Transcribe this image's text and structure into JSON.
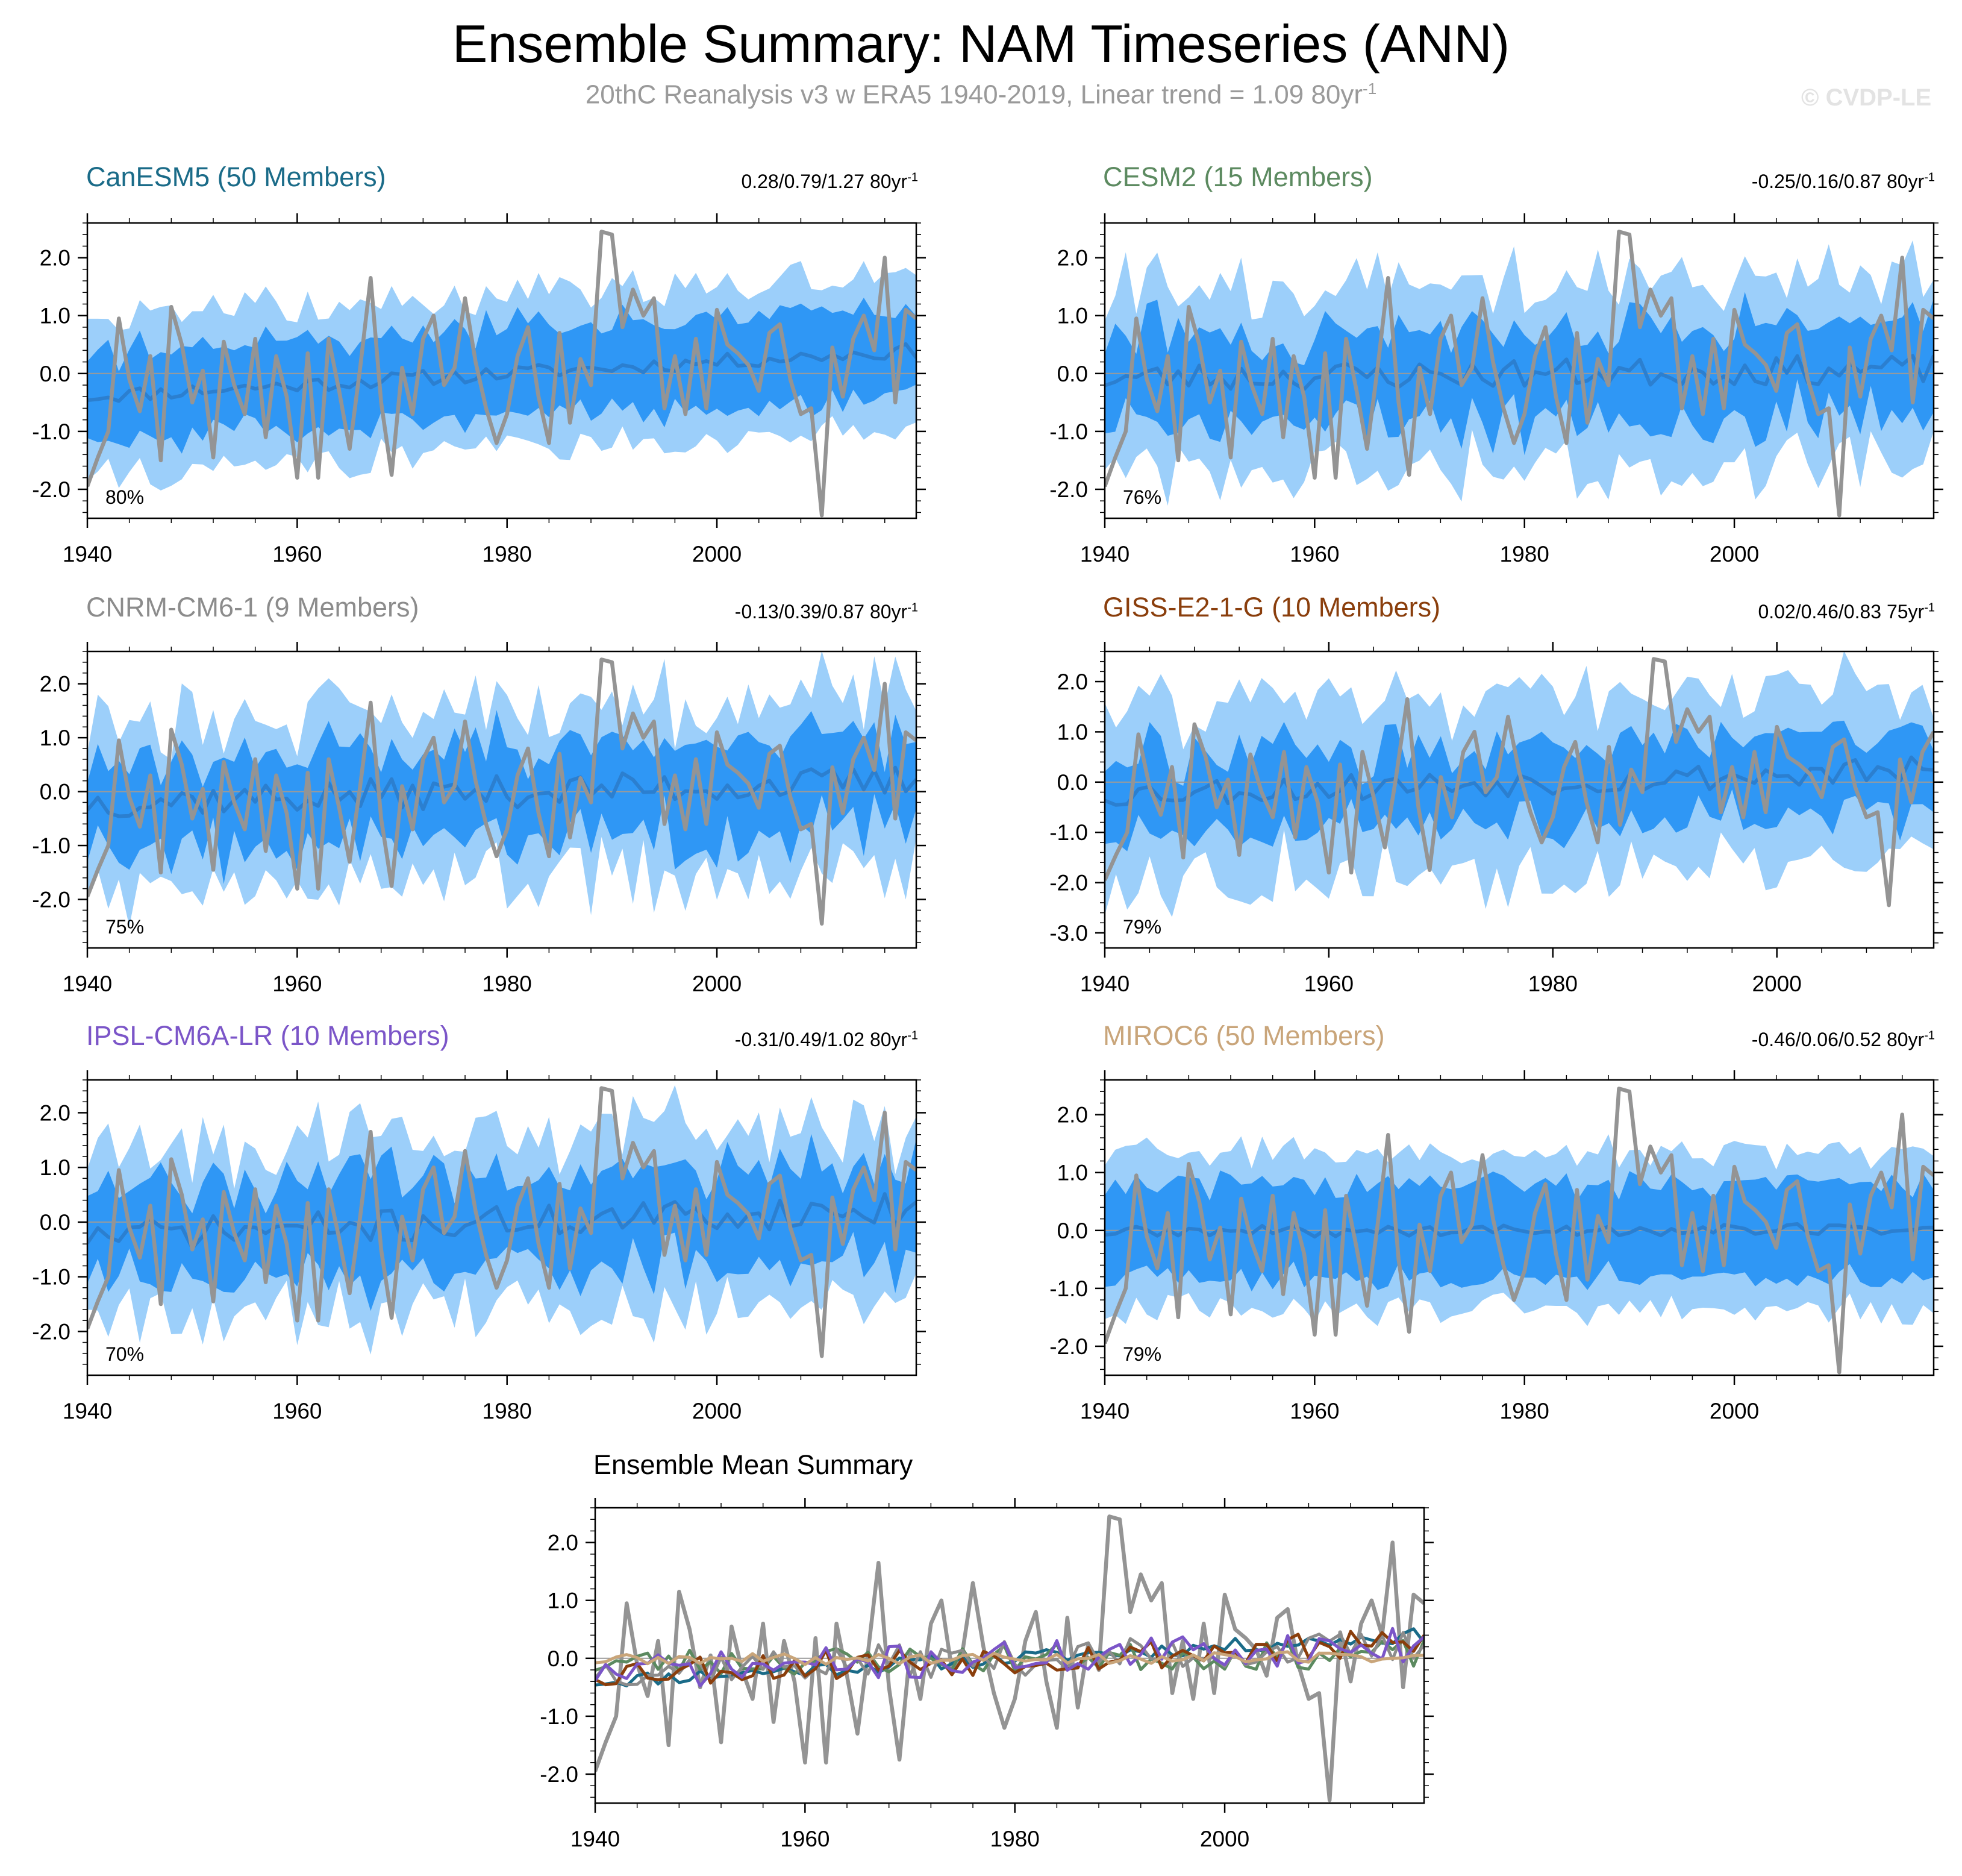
{
  "title": "Ensemble Summary: NAM Timeseries (ANN)",
  "subtitle": {
    "prefix": "20thC Reanalysis v3 w ERA5 1940-2019, Linear trend = 1.09 80yr",
    "superscript": "-1"
  },
  "watermark": "© CVDP-LE",
  "colors": {
    "inner_band": "#2f97f5",
    "outer_band": "#9ccffa",
    "ensemble_mean": "#2b7fd0",
    "observations": "#949494",
    "zero_line": "#9a9a9a"
  },
  "chart_data": [
    {
      "type": "area",
      "title": "CanESM5 (50 Members)",
      "title_color": "#1a6b88",
      "trend_text": "0.28/0.79/1.27 80yr",
      "trend_superscript": "-1",
      "percent_label": "80%",
      "x_range": [
        1940,
        2019
      ],
      "ylim": [
        -2.5,
        2.6
      ],
      "yticks": [
        -2.0,
        -1.0,
        0.0,
        1.0,
        2.0
      ],
      "ytick_labels": [
        "-2.0",
        "-1.0",
        "0.0",
        "1.0",
        "2.0"
      ],
      "xtick_labels": [
        "1940",
        "1960",
        "1980",
        "2000"
      ],
      "bands": {
        "mean_offset": 0.0,
        "mean_trend": 0.79,
        "mean_noise": 0.13,
        "inner_half_width": 0.75,
        "outer_half_width": 1.35,
        "band_noise": 0.18,
        "seed": 11
      }
    },
    {
      "type": "area",
      "title": "CESM2 (15 Members)",
      "title_color": "#5c8a60",
      "trend_text": "-0.25/0.16/0.87 80yr",
      "trend_superscript": "-1",
      "percent_label": "76%",
      "x_range": [
        1940,
        2019
      ],
      "ylim": [
        -2.5,
        2.6
      ],
      "yticks": [
        -2.0,
        -1.0,
        0.0,
        1.0,
        2.0
      ],
      "ytick_labels": [
        "-2.0",
        "-1.0",
        "0.0",
        "1.0",
        "2.0"
      ],
      "xtick_labels": [
        "1940",
        "1960",
        "1980",
        "2000"
      ],
      "bands": {
        "mean_offset": 0.0,
        "mean_trend": 0.16,
        "mean_noise": 0.25,
        "inner_half_width": 0.8,
        "outer_half_width": 1.6,
        "band_noise": 0.25,
        "seed": 23
      }
    },
    {
      "type": "area",
      "title": "CNRM-CM6-1 (9 Members)",
      "title_color": "#8c8c8c",
      "trend_text": "-0.13/0.39/0.87 80yr",
      "trend_superscript": "-1",
      "percent_label": "75%",
      "x_range": [
        1940,
        2019
      ],
      "ylim": [
        -2.9,
        2.6
      ],
      "yticks": [
        -2.0,
        -1.0,
        0.0,
        1.0,
        2.0
      ],
      "ytick_labels": [
        "-2.0",
        "-1.0",
        "0.0",
        "1.0",
        "2.0"
      ],
      "xtick_labels": [
        "1940",
        "1960",
        "1980",
        "2000"
      ],
      "bands": {
        "mean_offset": 0.0,
        "mean_trend": 0.39,
        "mean_noise": 0.3,
        "inner_half_width": 0.85,
        "outer_half_width": 1.6,
        "band_noise": 0.3,
        "seed": 37
      }
    },
    {
      "type": "area",
      "title": "GISS-E2-1-G (10 Members)",
      "title_color": "#8a3e0c",
      "trend_text": "0.02/0.46/0.83 75yr",
      "trend_superscript": "-1",
      "percent_label": "79%",
      "x_range": [
        1940,
        2014
      ],
      "ylim": [
        -3.3,
        2.6
      ],
      "yticks": [
        -3.0,
        -2.0,
        -1.0,
        0.0,
        1.0,
        2.0
      ],
      "ytick_labels": [
        "-3.0",
        "-2.0",
        "-1.0",
        "0.0",
        "1.0",
        "2.0"
      ],
      "xtick_labels": [
        "1940",
        "1960",
        "1980",
        "2000"
      ],
      "bands": {
        "mean_offset": 0.0,
        "mean_trend": 0.46,
        "mean_noise": 0.28,
        "inner_half_width": 0.8,
        "outer_half_width": 1.7,
        "band_noise": 0.3,
        "seed": 53
      }
    },
    {
      "type": "area",
      "title": "IPSL-CM6A-LR (10 Members)",
      "title_color": "#7b55c8",
      "trend_text": "-0.31/0.49/1.02 80yr",
      "trend_superscript": "-1",
      "percent_label": "70%",
      "x_range": [
        1940,
        2019
      ],
      "ylim": [
        -2.8,
        2.6
      ],
      "yticks": [
        -2.0,
        -1.0,
        0.0,
        1.0,
        2.0
      ],
      "ytick_labels": [
        "-2.0",
        "-1.0",
        "0.0",
        "1.0",
        "2.0"
      ],
      "xtick_labels": [
        "1940",
        "1960",
        "1980",
        "2000"
      ],
      "bands": {
        "mean_offset": 0.0,
        "mean_trend": 0.49,
        "mean_noise": 0.3,
        "inner_half_width": 0.85,
        "outer_half_width": 1.6,
        "band_noise": 0.3,
        "seed": 71
      }
    },
    {
      "type": "area",
      "title": "MIROC6 (50 Members)",
      "title_color": "#c9a57a",
      "trend_text": "-0.46/0.06/0.52 80yr",
      "trend_superscript": "-1",
      "percent_label": "79%",
      "x_range": [
        1940,
        2019
      ],
      "ylim": [
        -2.5,
        2.6
      ],
      "yticks": [
        -2.0,
        -1.0,
        0.0,
        1.0,
        2.0
      ],
      "ytick_labels": [
        "-2.0",
        "-1.0",
        "0.0",
        "1.0",
        "2.0"
      ],
      "xtick_labels": [
        "1940",
        "1960",
        "1980",
        "2000"
      ],
      "bands": {
        "mean_offset": 0.0,
        "mean_trend": 0.06,
        "mean_noise": 0.1,
        "inner_half_width": 0.8,
        "outer_half_width": 1.35,
        "band_noise": 0.15,
        "seed": 89
      }
    },
    {
      "type": "line",
      "title": "Ensemble Mean Summary",
      "title_color": "#000000",
      "x_range": [
        1940,
        2019
      ],
      "ylim": [
        -2.5,
        2.6
      ],
      "yticks": [
        -2.0,
        -1.0,
        0.0,
        1.0,
        2.0
      ],
      "ytick_labels": [
        "-2.0",
        "-1.0",
        "0.0",
        "1.0",
        "2.0"
      ],
      "xtick_labels": [
        "1940",
        "1960",
        "1980",
        "2000"
      ],
      "series": [
        {
          "name": "CanESM5",
          "color": "#1a6b88",
          "trend": 0.79,
          "noise": 0.13,
          "seed": 11
        },
        {
          "name": "CESM2",
          "color": "#5c8a60",
          "trend": 0.16,
          "noise": 0.25,
          "seed": 23
        },
        {
          "name": "CNRM-CM6-1",
          "color": "#8c8c8c",
          "trend": 0.39,
          "noise": 0.3,
          "seed": 37
        },
        {
          "name": "GISS-E2-1-G",
          "color": "#8a3e0c",
          "trend": 0.46,
          "noise": 0.28,
          "seed": 53
        },
        {
          "name": "IPSL-CM6A-LR",
          "color": "#7b55c8",
          "trend": 0.49,
          "noise": 0.3,
          "seed": 71
        },
        {
          "name": "MIROC6",
          "color": "#c9a57a",
          "trend": 0.06,
          "noise": 0.1,
          "seed": 89
        }
      ]
    }
  ],
  "observations": {
    "name": "20thC Reanalysis v3 w ERA5",
    "years": [
      1940,
      1941,
      1942,
      1943,
      1944,
      1945,
      1946,
      1947,
      1948,
      1949,
      1950,
      1951,
      1952,
      1953,
      1954,
      1955,
      1956,
      1957,
      1958,
      1959,
      1960,
      1961,
      1962,
      1963,
      1964,
      1965,
      1966,
      1967,
      1968,
      1969,
      1970,
      1971,
      1972,
      1973,
      1974,
      1975,
      1976,
      1977,
      1978,
      1979,
      1980,
      1981,
      1982,
      1983,
      1984,
      1985,
      1986,
      1987,
      1988,
      1989,
      1990,
      1991,
      1992,
      1993,
      1994,
      1995,
      1996,
      1997,
      1998,
      1999,
      2000,
      2001,
      2002,
      2003,
      2004,
      2005,
      2006,
      2007,
      2008,
      2009,
      2010,
      2011,
      2012,
      2013,
      2014,
      2015,
      2016,
      2017,
      2018,
      2019
    ],
    "values": [
      -1.95,
      -1.45,
      -1.0,
      0.95,
      -0.1,
      -0.65,
      0.3,
      -1.5,
      1.15,
      0.5,
      -0.5,
      0.05,
      -1.45,
      0.55,
      -0.2,
      -0.7,
      0.6,
      -1.1,
      0.3,
      -0.4,
      -1.8,
      0.35,
      -1.8,
      0.6,
      -0.3,
      -1.3,
      0.1,
      1.65,
      -0.5,
      -1.75,
      0.1,
      -0.7,
      0.6,
      1.0,
      -0.2,
      0.1,
      1.3,
      0.2,
      -0.6,
      -1.2,
      -0.7,
      0.3,
      0.8,
      -0.4,
      -1.2,
      0.7,
      -0.85,
      0.25,
      -0.2,
      2.45,
      2.4,
      0.8,
      1.45,
      1.0,
      1.3,
      -0.6,
      0.3,
      -0.7,
      0.6,
      -0.6,
      1.1,
      0.5,
      0.35,
      0.15,
      -0.3,
      0.7,
      0.85,
      -0.1,
      -0.7,
      -0.6,
      -2.45,
      0.45,
      -0.4,
      0.6,
      1.0,
      0.4,
      2.0,
      -0.5,
      1.1,
      0.95
    ]
  }
}
